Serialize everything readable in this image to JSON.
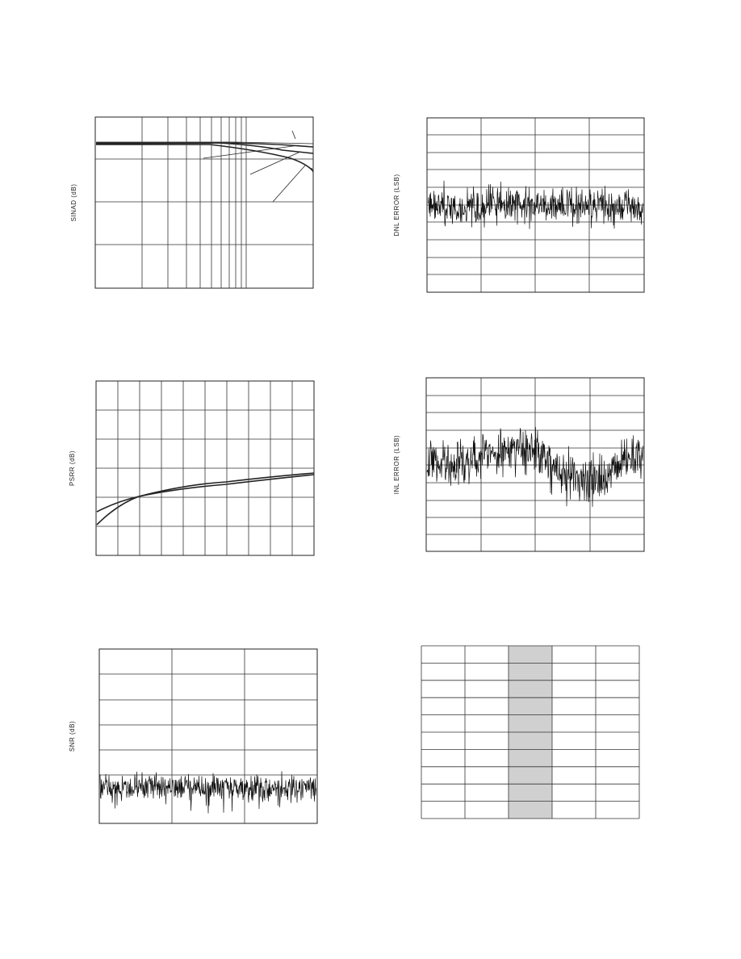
{
  "plots": [
    {
      "ylabel": "SINAD (dB)"
    },
    {
      "ylabel": "DNL ERROR (LSB)"
    },
    {
      "ylabel": "PSRR (dB)"
    },
    {
      "ylabel": "INL ERROR (LSB)"
    },
    {
      "ylabel": "SNR (dB)"
    }
  ]
}
